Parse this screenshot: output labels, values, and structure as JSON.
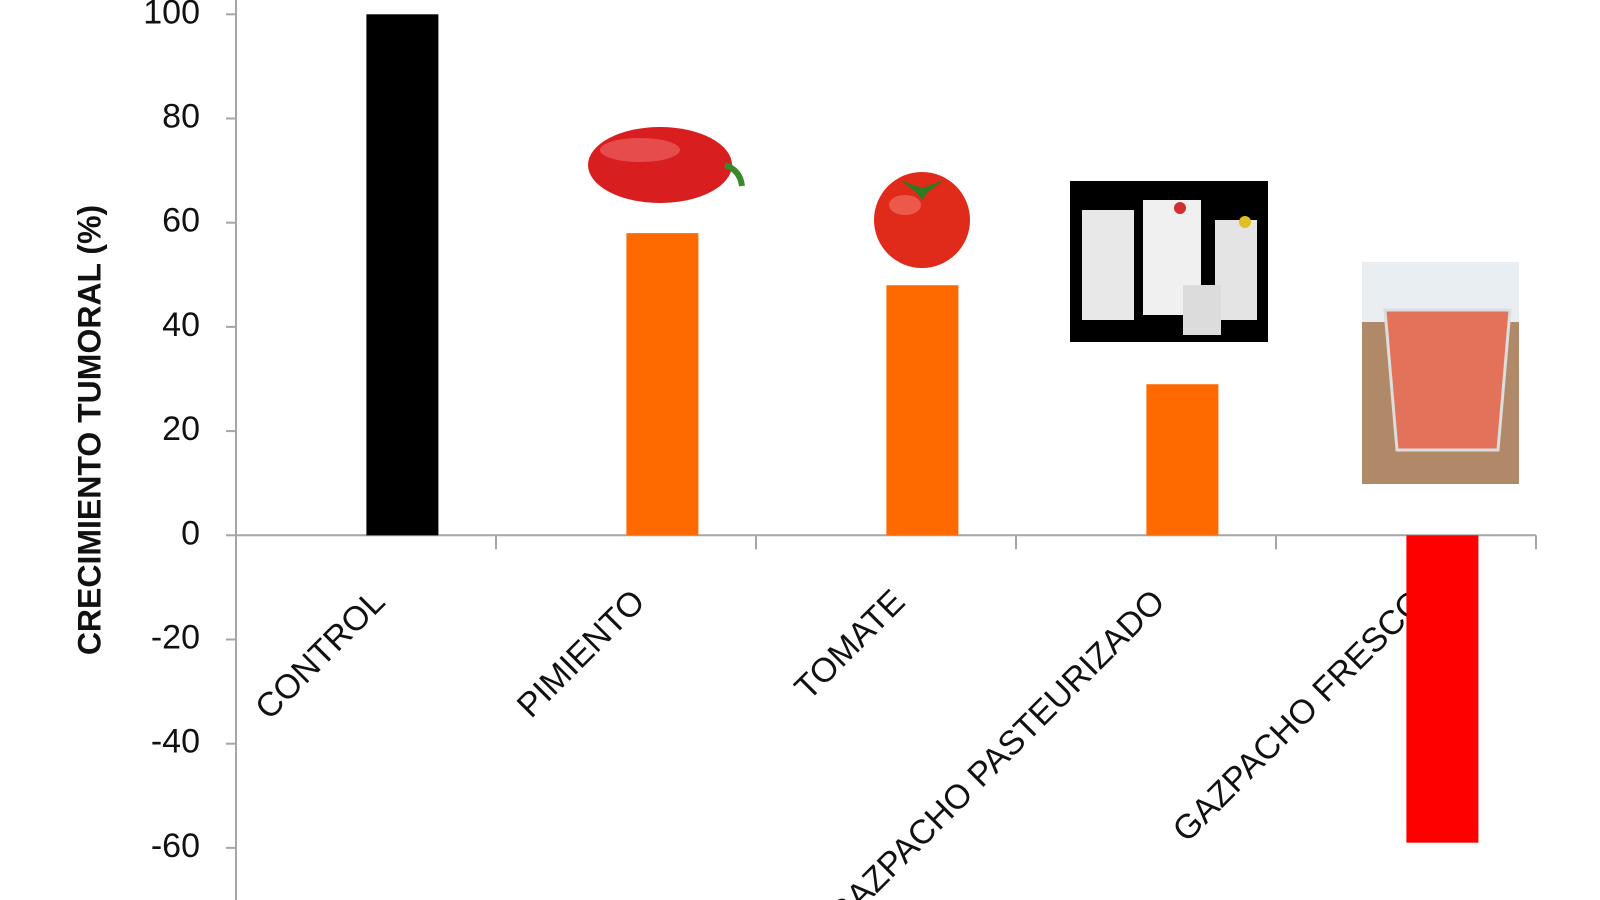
{
  "chart_data": {
    "type": "bar",
    "y_label": "CRECIMIENTO TUMORAL (%)",
    "categories": [
      "CONTROL",
      "PIMIENTO",
      "TOMATE",
      "GAZPACHO PASTEURIZADO",
      "GAZPACHO FRESCO"
    ],
    "values": [
      100,
      58,
      48,
      29,
      -59
    ],
    "colors": [
      "#000000",
      "#ff6a00",
      "#ff6a00",
      "#ff6a00",
      "#ff0000"
    ],
    "ylim": [
      -70,
      100
    ],
    "yticks": [
      -60,
      -40,
      -20,
      0,
      20,
      40,
      60,
      80,
      100
    ]
  }
}
